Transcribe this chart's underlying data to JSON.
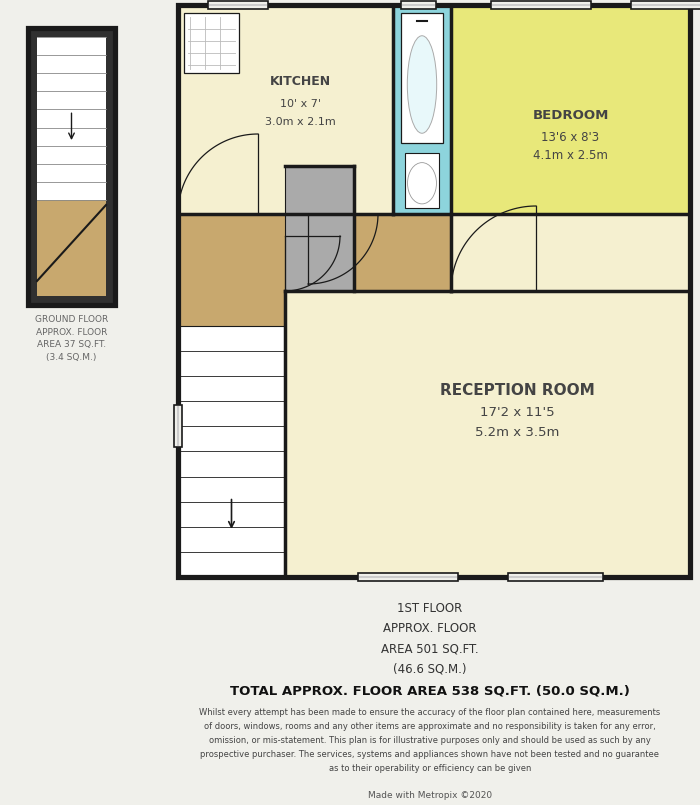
{
  "bg_color": "#f0f0eb",
  "wall_color": "#1a1a1a",
  "wall_lw": 2.5,
  "kitchen_color": "#f5f0d0",
  "bedroom_color": "#e8e87a",
  "bathroom_color": "#8dd4dc",
  "hallway_color": "#c8a86e",
  "reception_color": "#f5f0d0",
  "stair_fill": "#ffffff",
  "gray_color": "#aaaaaa",
  "dark_wall": "#2a2a2a",
  "footer_line1": "1ST FLOOR",
  "footer_line2": "APPROX. FLOOR",
  "footer_line3": "AREA 501 SQ.FT.",
  "footer_line4": "(46.6 SQ.M.)",
  "footer_total": "TOTAL APPROX. FLOOR AREA 538 SQ.FT. (50.0 SQ.M.)",
  "footer_disclaimer": "Whilst every attempt has been made to ensure the accuracy of the floor plan contained here, measurements\nof doors, windows, rooms and any other items are approximate and no responsibility is taken for any error,\nomission, or mis-statement. This plan is for illustrative purposes only and should be used as such by any\nprospective purchaser. The services, systems and appliances shown have not been tested and no guarantee\nas to their operability or efficiency can be given",
  "footer_credit": "Made with Metropix ©2020",
  "ground_label": "GROUND FLOOR\nAPPROX. FLOOR\nAREA 37 SQ.FT.\n(3.4 SQ.M.)"
}
